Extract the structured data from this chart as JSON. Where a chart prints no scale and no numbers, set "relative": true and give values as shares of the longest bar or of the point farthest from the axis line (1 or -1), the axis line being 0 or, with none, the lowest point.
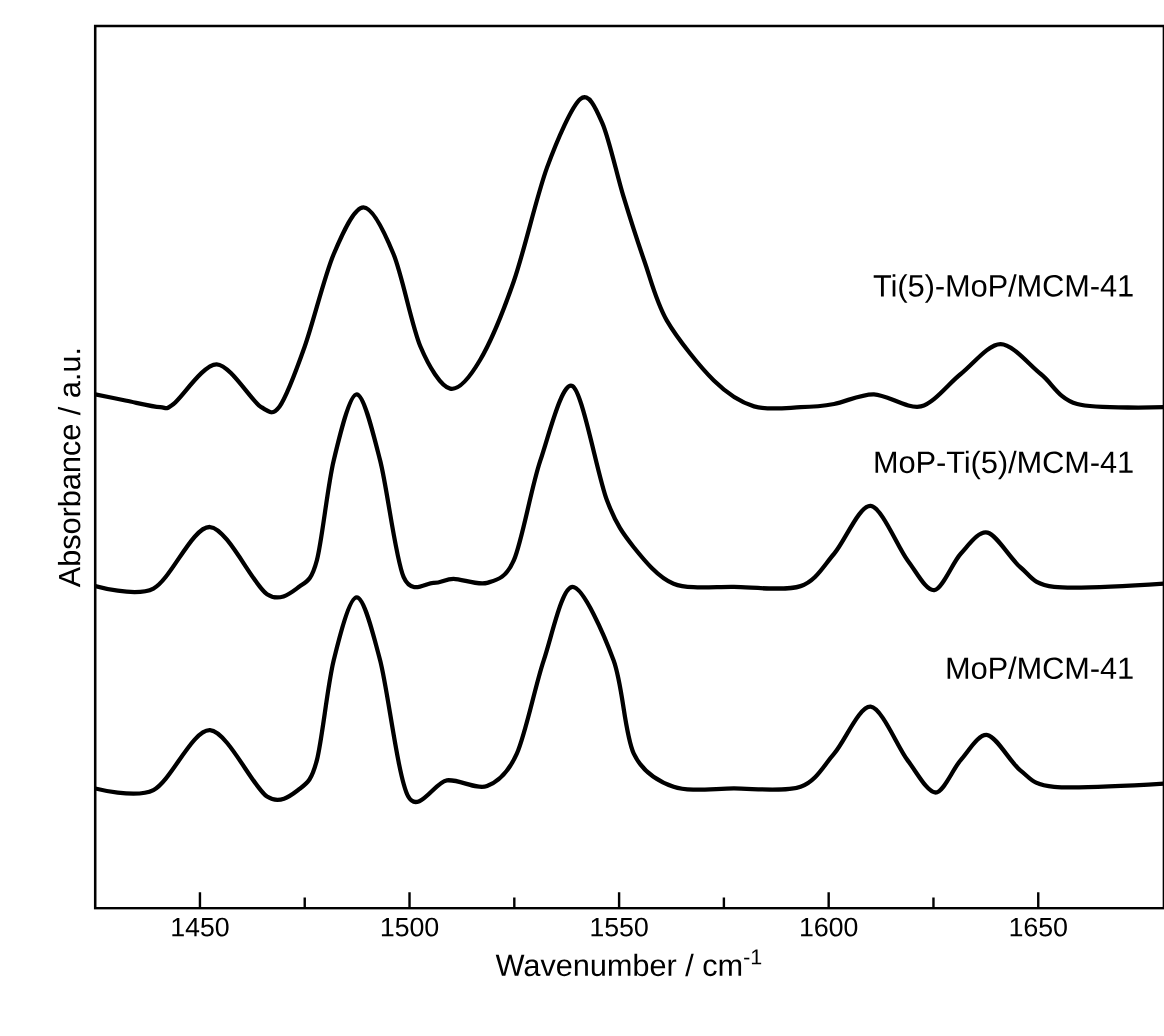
{
  "chart_data": {
    "type": "line",
    "relative": true,
    "xlabel": "Wavenumber / cm$^{-1}$",
    "ylabel": "Absorbance / a.u.",
    "xlim": [
      1425,
      1680
    ],
    "xticks": [
      1450,
      1500,
      1550,
      1600,
      1650
    ],
    "tick_labels": "x",
    "marker": "none",
    "line_style": "solid",
    "grid": false,
    "legend": false,
    "series": [
      {
        "name": "Ti(5)-MoP/MCM-41",
        "color": "#000000",
        "x": [
          1425,
          1432.5,
          1440.5,
          1443.7,
          1454,
          1464.4,
          1469,
          1475,
          1481.9,
          1489,
          1496.2,
          1502.6,
          1509.7,
          1516.8,
          1524.9,
          1532.8,
          1540.8,
          1546,
          1551,
          1556,
          1561.4,
          1572.6,
          1582.2,
          1593.3,
          1601.3,
          1610.8,
          1622,
          1631.5,
          1641,
          1650.6,
          1659.3,
          1680
        ],
        "values": [
          0.635,
          0.627,
          0.619,
          0.623,
          0.672,
          0.62,
          0.62,
          0.694,
          0.808,
          0.866,
          0.808,
          0.694,
          0.642,
          0.677,
          0.775,
          0.915,
          1.0,
          0.97,
          0.88,
          0.8,
          0.726,
          0.652,
          0.62,
          0.619,
          0.623,
          0.635,
          0.62,
          0.66,
          0.697,
          0.66,
          0.623,
          0.619
        ]
      },
      {
        "name": "MoP-Ti(5)/MCM-41",
        "color": "#000000",
        "x": [
          1425,
          1438.9,
          1452.4,
          1466,
          1473.9,
          1477.9,
          1481.9,
          1487.4,
          1493,
          1498.6,
          1505.7,
          1510.5,
          1518.5,
          1524.9,
          1531.2,
          1538.9,
          1547.1,
          1553.5,
          1563,
          1577.4,
          1593.3,
          1601.3,
          1610,
          1618.8,
          1625.2,
          1631.5,
          1637.9,
          1645.8,
          1653.8,
          1680
        ],
        "values": [
          0.398,
          0.395,
          0.471,
          0.388,
          0.398,
          0.43,
          0.553,
          0.635,
          0.553,
          0.409,
          0.402,
          0.407,
          0.402,
          0.43,
          0.553,
          0.645,
          0.504,
          0.446,
          0.401,
          0.397,
          0.398,
          0.438,
          0.497,
          0.43,
          0.393,
          0.438,
          0.464,
          0.421,
          0.397,
          0.401
        ]
      },
      {
        "name": "MoP/MCM-41",
        "color": "#000000",
        "x": [
          1425,
          1438.9,
          1452.4,
          1466,
          1473.9,
          1477.9,
          1481.9,
          1487.4,
          1493,
          1499.7,
          1508.9,
          1518.5,
          1525.6,
          1532,
          1538.9,
          1548.7,
          1553.5,
          1563,
          1577.4,
          1593.3,
          1601.3,
          1610,
          1618.8,
          1625.5,
          1631.5,
          1637.9,
          1645.8,
          1653.8,
          1680
        ],
        "values": [
          0.148,
          0.146,
          0.22,
          0.138,
          0.148,
          0.183,
          0.306,
          0.384,
          0.306,
          0.138,
          0.158,
          0.151,
          0.191,
          0.306,
          0.397,
          0.306,
          0.191,
          0.15,
          0.148,
          0.15,
          0.191,
          0.249,
          0.183,
          0.143,
          0.183,
          0.214,
          0.17,
          0.15,
          0.154
        ]
      }
    ]
  }
}
